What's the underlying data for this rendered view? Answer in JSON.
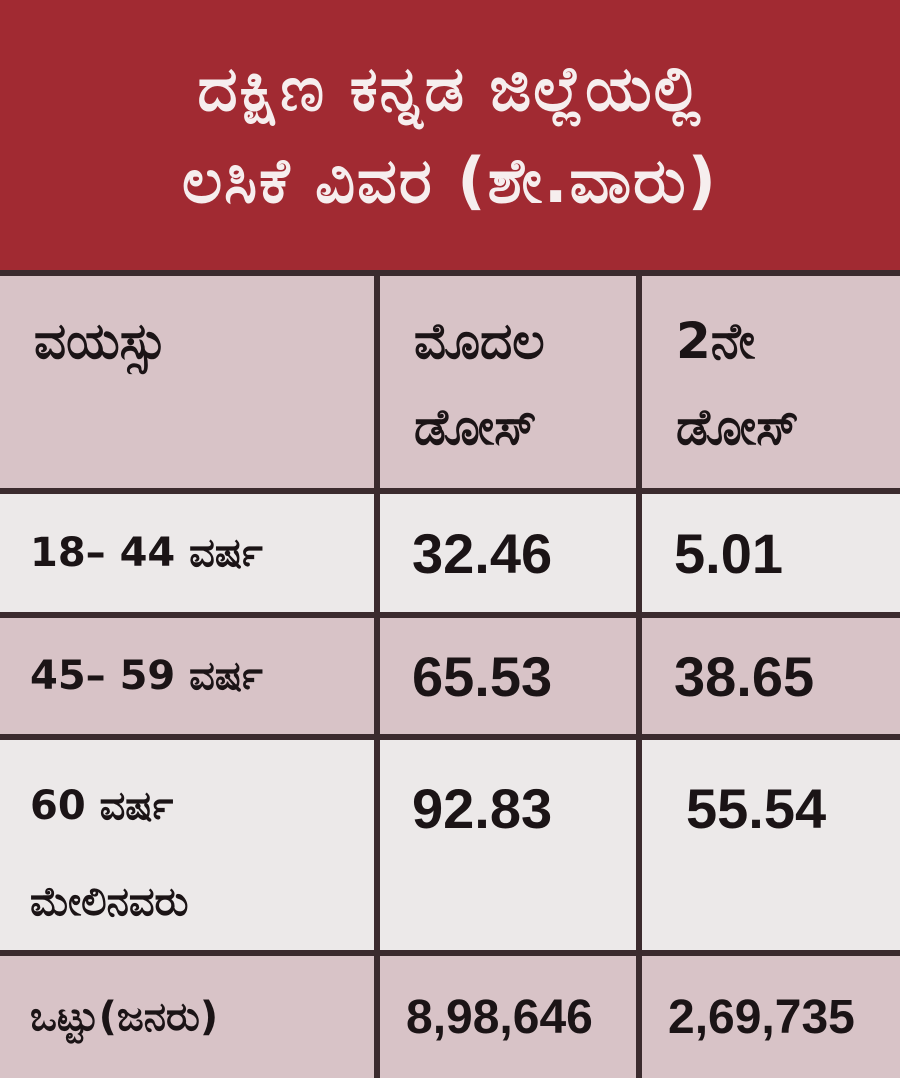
{
  "title": {
    "line1": "ದಕ್ಷಿಣ ಕನ್ನಡ ಜಿಲ್ಲೆಯಲ್ಲಿ",
    "line2": "ಲಸಿಕೆ ವಿವರ (ಶೇ.ವಾರು)"
  },
  "table": {
    "headers": [
      "ವಯಸ್ಸು",
      "ಮೊದಲ ಡೋಸ್",
      "2ನೇ ಡೋಸ್"
    ],
    "header_lines": {
      "col1": [
        "ವಯಸ್ಸು"
      ],
      "col2": [
        "ಮೊದಲ",
        "ಡೋಸ್"
      ],
      "col3": [
        "2ನೇ",
        "ಡೋಸ್"
      ]
    },
    "rows": [
      {
        "age": "18– 44 ವರ್ಷ",
        "first": "32.46",
        "second": "5.01"
      },
      {
        "age": "45– 59 ವರ್ಷ",
        "first": "65.53",
        "second": "38.65"
      },
      {
        "age_lines": [
          "60 ವರ್ಷ",
          "ಮೇಲಿನವರು"
        ],
        "first": "92.83",
        "second": "55.54"
      },
      {
        "age": "ಒಟ್ಟು(ಜನರು)",
        "first": "8,98,646",
        "second": "2,69,735"
      }
    ]
  },
  "colors": {
    "header_bg": "#a12a32",
    "row_rose": "#d8c3c7",
    "row_light": "#ece9e9",
    "grid": "#3b2b2e"
  }
}
